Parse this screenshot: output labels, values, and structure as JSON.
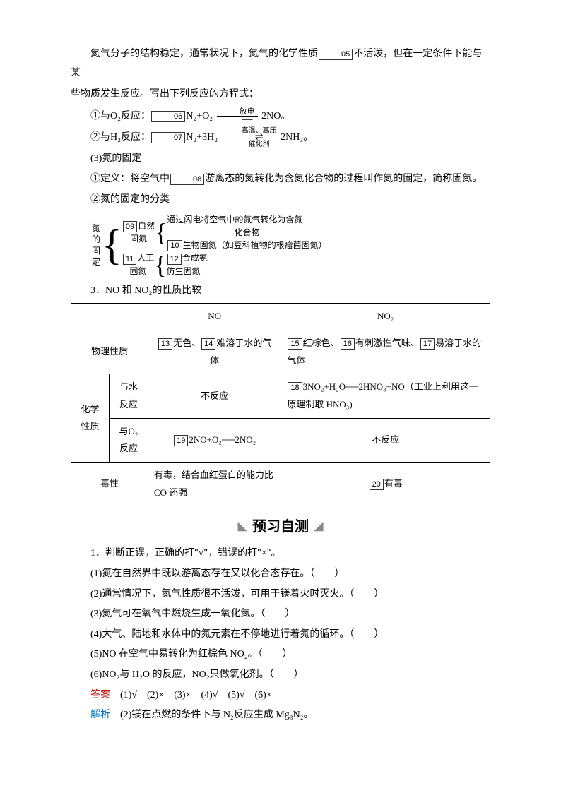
{
  "intro": {
    "line1a": "氮气分子的结构稳定，通常状况下，氮气的化学性质",
    "box05": "05",
    "line1b": "不活泼，但在一定条件下能与某",
    "line2": "些物质发生反应。写出下列反应的方程式：",
    "eq1_label": "①与O₂反应：",
    "box06": "06",
    "eq1_left": "N₂+O₂",
    "eq1_cond_top": "放电",
    "eq1_right": " 2NO。",
    "eq2_label": "②与H₂反应：",
    "box07": "07",
    "eq2_left": "N₂+3H₂",
    "eq2_cond_top": "高温、高压",
    "eq2_cond_bot": "催化剂",
    "eq2_right": " 2NH₃。",
    "sub3": "(3)氮的固定",
    "def_a": "①定义：将空气中",
    "box08": "08",
    "def_b": "游离态的氮转化为含氮化合物的过程叫作氮的固定，简称固氮。",
    "class_title": "②氮的固定的分类"
  },
  "diagram": {
    "root": "氮的固定",
    "g1_box": "09",
    "g1_label": "自然",
    "g1_sub": "固氮",
    "g1_r1": "通过闪电将空气中的氮气转化为含氮",
    "g1_r1b": "化合物",
    "g1_r2_box": "10",
    "g1_r2": "生物固氮（如豆科植物的根瘤菌固氮）",
    "g2_box": "11",
    "g2_label": "人工",
    "g2_sub": "固氮",
    "g2_r1_box": "12",
    "g2_r1": "合成氨",
    "g2_r2": "仿生固氮"
  },
  "section3_title": "3．NO 和 NO₂的性质比较",
  "table": {
    "h_no": "NO",
    "h_no2": "NO₂",
    "r1_label": "物理性质",
    "r1_no_b1": "13",
    "r1_no_t1": "无色、",
    "r1_no_b2": "14",
    "r1_no_t2": "难溶于水的气体",
    "r1_no2_b1": "15",
    "r1_no2_t1": "红棕色、",
    "r1_no2_b2": "16",
    "r1_no2_t2": "有刺激性气味、",
    "r1_no2_b3": "17",
    "r1_no2_t3": "易溶于水的气体",
    "r_chem": "化学性质",
    "r2_label": "与水反应",
    "r2_no": "不反应",
    "r2_no2_b": "18",
    "r2_no2_eq": "3NO₂+H₂O══2HNO₃+NO",
    "r2_no2_t": "（工业上利用这一原理制取 HNO₃)",
    "r3_label": "与O₂反应",
    "r3_no_b": "19",
    "r3_no_eq": "2NO+O₂══2NO₂",
    "r3_no2": "不反应",
    "r4_label": "毒性",
    "r4_no": "有毒，结合血红蛋白的能力比 CO 还强",
    "r4_no2_b": "20",
    "r4_no2_t": "有毒"
  },
  "quiz_header": "预习自测",
  "quiz": {
    "q_title": "1．判断正误，正确的打\"√\"，错误的打\"×\"。",
    "q1": "(1)氮在自然界中既以游离态存在又以化合态存在。（　　）",
    "q2": "(2)通常情况下，氮气性质很不活泼，可用于镁着火时灭火。（　　）",
    "q3": "(3)氮气可在氧气中燃烧生成一氧化氮。（　　）",
    "q4": "(4)大气、陆地和水体中的氮元素在不停地进行着氮的循环。（　　）",
    "q5": "(5)NO 在空气中易转化为红棕色 NO₂。（　　）",
    "q6": "(6)NO₂与 H₂O 的反应，NO₂只做氧化剂。（　　）",
    "ans_label": "答案",
    "ans_text": "　(1)√　(2)×　(3)×　(4)√　(5)√　(6)×",
    "exp_label": "解析",
    "exp_text": "　(2)镁在点燃的条件下与 N₂反应生成 Mg₃N₂。"
  }
}
